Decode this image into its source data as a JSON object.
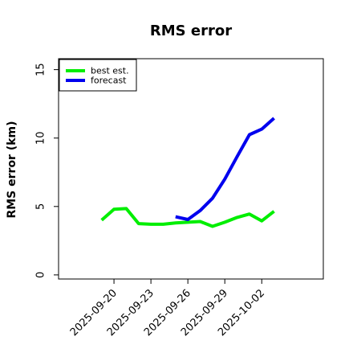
{
  "chart_data": {
    "type": "line",
    "title": "RMS error",
    "ylabel": "RMS error (km)",
    "xlabel": "",
    "x_ticks": [
      "2025-09-20",
      "2025-09-23",
      "2025-09-26",
      "2025-09-29",
      "2025-10-02"
    ],
    "y_ticks": [
      "0",
      "5",
      "10",
      "15"
    ],
    "xlim": [
      "2025-09-15T12:00",
      "2025-10-07T00:00"
    ],
    "ylim": [
      -0.3,
      15.8
    ],
    "grid": false,
    "legend_position": "top-left",
    "series": [
      {
        "name": "best est.",
        "color": "#00ee00",
        "x": [
          "2025-09-19",
          "2025-09-20",
          "2025-09-21",
          "2025-09-22",
          "2025-09-23",
          "2025-09-24",
          "2025-09-25",
          "2025-09-26",
          "2025-09-27",
          "2025-09-28",
          "2025-09-29",
          "2025-09-30",
          "2025-10-01",
          "2025-10-02",
          "2025-10-03"
        ],
        "values": [
          4.0,
          4.8,
          4.85,
          3.75,
          3.7,
          3.7,
          3.8,
          3.85,
          3.9,
          3.55,
          3.85,
          4.2,
          4.45,
          3.95,
          4.65
        ]
      },
      {
        "name": "forecast",
        "color": "#0000ee",
        "x": [
          "2025-09-25",
          "2025-09-26",
          "2025-09-27",
          "2025-09-28",
          "2025-09-29",
          "2025-09-30",
          "2025-10-01",
          "2025-10-02",
          "2025-10-03"
        ],
        "values": [
          4.25,
          4.05,
          4.7,
          5.6,
          7.0,
          8.65,
          10.25,
          10.65,
          11.45
        ]
      }
    ]
  }
}
